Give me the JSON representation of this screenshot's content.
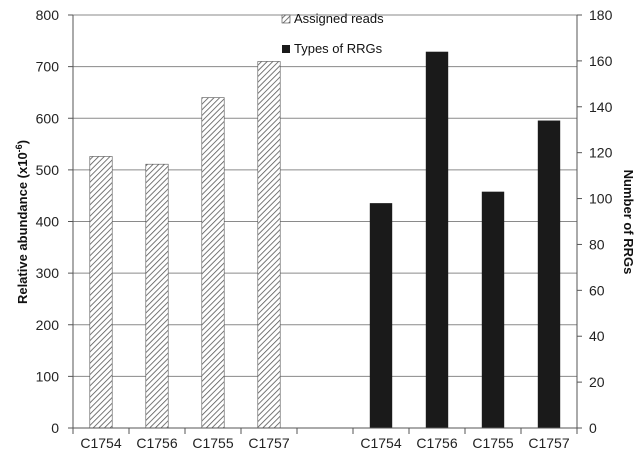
{
  "chart_data": {
    "type": "bar",
    "categories": [
      "C1754",
      "C1756",
      "C1755",
      "C1757"
    ],
    "series": [
      {
        "name": "Assigned reads",
        "axis": "left",
        "values": [
          526,
          511,
          640,
          710
        ],
        "fill": "hatched",
        "color": "#555555"
      },
      {
        "name": "Types of RRGs",
        "axis": "right",
        "values": [
          98,
          164,
          103,
          134
        ],
        "fill": "solid",
        "color": "#1a1a1a"
      }
    ],
    "ylabel": "Relative abundance (x10",
    "ylabel_sup": "-6",
    "ylabel_close": ")",
    "y2label": "Number of RRGs",
    "ylim": [
      0,
      800
    ],
    "y2lim": [
      0,
      180
    ],
    "yticks": [
      0,
      100,
      200,
      300,
      400,
      500,
      600,
      700,
      800
    ],
    "y2ticks": [
      0,
      20,
      40,
      60,
      80,
      100,
      120,
      140,
      160,
      180
    ],
    "grid": true,
    "legend": "top-center"
  }
}
